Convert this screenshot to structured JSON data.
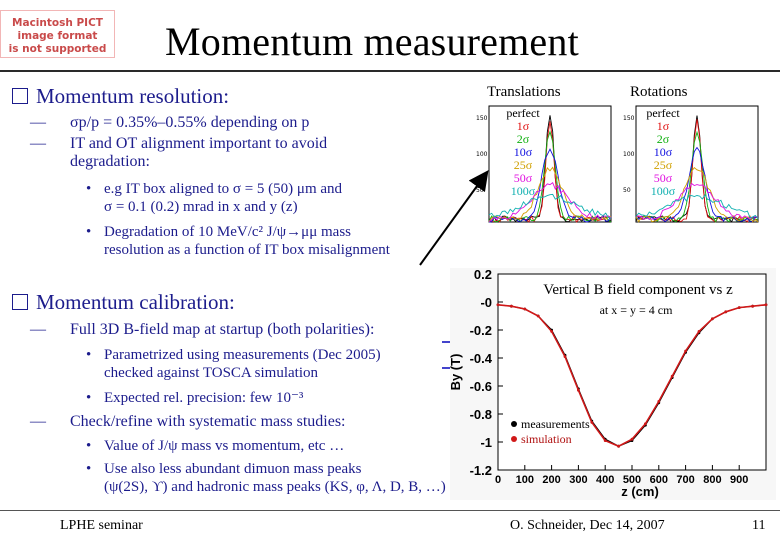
{
  "placeholder": {
    "lines": [
      "Macintosh PICT",
      "image format",
      "is not supported"
    ]
  },
  "title": "Momentum measurement",
  "section1": {
    "heading": "Momentum resolution:",
    "items": [
      {
        "text": "σp/p = 0.35%–0.55% depending on p"
      },
      {
        "line1": "IT and OT alignment important to avoid",
        "line2": "degradation:"
      }
    ],
    "bullets": [
      {
        "line1": "e.g IT box aligned to σ = 5 (50) μm and",
        "line2": "σ = 0.1 (0.2) mrad in x and y (z)"
      },
      {
        "line1": "Degradation of 10 MeV/c² J/ψ→μμ mass",
        "line2": "resolution as a function of IT box misalignment"
      }
    ]
  },
  "section2": {
    "heading": "Momentum calibration:",
    "items": [
      {
        "text": "Full 3D B-field map at startup (both polarities):"
      },
      {
        "text": "Check/refine with systematic mass studies:"
      }
    ],
    "bullets_a": [
      {
        "line1": "Parametrized using measurements (Dec 2005)",
        "line2": "checked against TOSCA simulation"
      },
      {
        "line1": "Expected rel. precision: few 10⁻³",
        "line2": ""
      }
    ],
    "bullets_b": [
      {
        "line1": "Value of J/ψ mass vs momentum, etc …",
        "line2": ""
      },
      {
        "line1": "Use also less abundant dimuon mass peaks",
        "line2": "(ψ(2S), ϒ) and hadronic mass peaks (KS, φ, Λ, D, B, …)"
      }
    ]
  },
  "histos": {
    "translations_label": "Translations",
    "rotations_label": "Rotations",
    "legend": [
      "perfect",
      "1σ",
      "2σ",
      "10σ",
      "25σ",
      "50σ",
      "100σ"
    ],
    "legend_colors": [
      "#000000",
      "#e01010",
      "#10b010",
      "#1010e0",
      "#d0a000",
      "#e010e0",
      "#10b0b0"
    ]
  },
  "chart_data": {
    "type": "line",
    "title": "Vertical B field component vs z",
    "subtitle": "at x = y = 4 cm",
    "xlabel": "z (cm)",
    "ylabel": "By (T)",
    "xlim": [
      0,
      1000
    ],
    "ylim": [
      -1.2,
      0.2
    ],
    "xticks": [
      "0",
      "100",
      "200",
      "300",
      "400",
      "500",
      "600",
      "700",
      "800",
      "900"
    ],
    "yticks": [
      "0.2",
      "-0",
      "-0.2",
      "-0.4",
      "-0.6",
      "-0.8",
      "-1",
      "-1.2"
    ],
    "series": [
      {
        "name": "measurements",
        "color": "#000000",
        "x": [
          0,
          50,
          100,
          150,
          200,
          250,
          300,
          350,
          400,
          450,
          500,
          550,
          600,
          650,
          700,
          750,
          800,
          850,
          900,
          950,
          1000
        ],
        "y": [
          -0.02,
          -0.03,
          -0.05,
          -0.1,
          -0.2,
          -0.38,
          -0.62,
          -0.85,
          -0.98,
          -1.03,
          -0.99,
          -0.88,
          -0.72,
          -0.54,
          -0.36,
          -0.22,
          -0.12,
          -0.07,
          -0.04,
          -0.03,
          -0.02
        ]
      },
      {
        "name": "simulation",
        "color": "#d01818",
        "x": [
          0,
          50,
          100,
          150,
          200,
          250,
          300,
          350,
          400,
          450,
          500,
          550,
          600,
          650,
          700,
          750,
          800,
          850,
          900,
          950,
          1000
        ],
        "y": [
          -0.02,
          -0.03,
          -0.05,
          -0.1,
          -0.21,
          -0.39,
          -0.63,
          -0.86,
          -0.99,
          -1.03,
          -0.98,
          -0.87,
          -0.71,
          -0.53,
          -0.35,
          -0.21,
          -0.12,
          -0.07,
          -0.04,
          -0.03,
          -0.02
        ]
      }
    ]
  },
  "footer": {
    "left": "LPHE seminar",
    "middle": "O. Schneider, Dec 14, 2007",
    "page": "11"
  }
}
